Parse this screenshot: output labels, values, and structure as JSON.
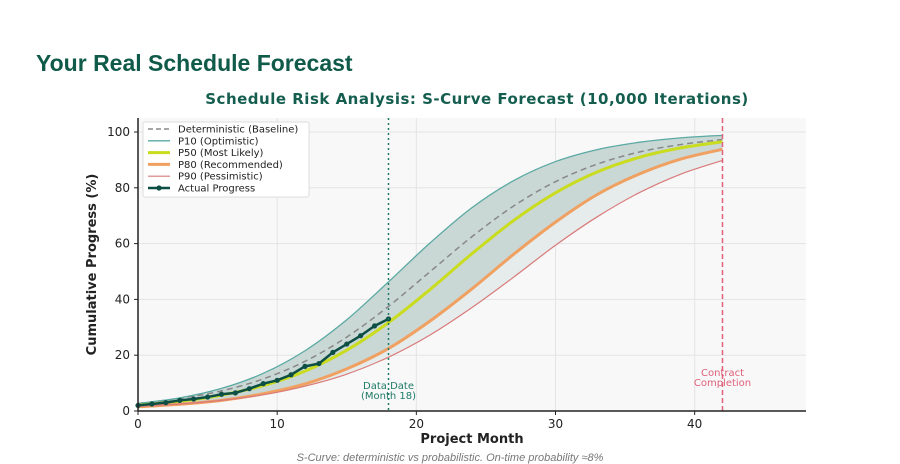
{
  "page": {
    "title": "Your Real Schedule Forecast",
    "caption": "S-Curve: deterministic vs probabilistic. On-time probability ≈8%"
  },
  "chart_data": {
    "type": "line",
    "title": "Schedule Risk Analysis: S-Curve Forecast (10,000 Iterations)",
    "xlabel": "Project Month",
    "ylabel": "Cumulative Progress (%)",
    "xlim": [
      0,
      48
    ],
    "ylim": [
      0,
      105
    ],
    "xticks": [
      0,
      10,
      20,
      30,
      40
    ],
    "yticks": [
      0,
      20,
      40,
      60,
      80,
      100
    ],
    "grid": true,
    "legend_placement": "top-left",
    "x": [
      0,
      3,
      6,
      9,
      12,
      15,
      18,
      21,
      24,
      27,
      30,
      33,
      36,
      39,
      42
    ],
    "series": [
      {
        "name": "Deterministic (Baseline)",
        "color": "#888888",
        "style": "dashed",
        "values": [
          2.7,
          4.5,
          7.2,
          11.5,
          17.8,
          26.5,
          37.5,
          50,
          62.5,
          73.5,
          82.2,
          88.5,
          92.8,
          95.5,
          97.3
        ]
      },
      {
        "name": "P10 (Optimistic)",
        "color": "#5aa9a3",
        "style": "solid",
        "values": [
          2.7,
          4.7,
          8.1,
          13.5,
          21.6,
          32.7,
          46.3,
          60.3,
          72.9,
          82.6,
          89.4,
          93.7,
          96.3,
          97.9,
          98.8
        ]
      },
      {
        "name": "P50 (Most Likely)",
        "color": "#c9dc1e",
        "style": "thick",
        "values": [
          2.1,
          3.5,
          5.7,
          9.1,
          14.3,
          21.8,
          31.7,
          43.6,
          56.4,
          68.3,
          78.2,
          85.7,
          90.9,
          94.3,
          96.5
        ]
      },
      {
        "name": "P80 (Recommended)",
        "color": "#f0a060",
        "style": "thick",
        "values": [
          1.5,
          2.4,
          3.8,
          6.2,
          9.7,
          15.1,
          22.4,
          32.3,
          43.8,
          56.2,
          67.7,
          77.6,
          84.9,
          90.3,
          93.8
        ]
      },
      {
        "name": "P90 (Pessimistic)",
        "color": "#d97a7a",
        "style": "solid",
        "values": [
          1.6,
          2.5,
          3.8,
          5.8,
          8.9,
          13.2,
          19.3,
          27.3,
          37.1,
          48.0,
          59.4,
          69.6,
          78.2,
          84.9,
          89.8
        ]
      }
    ],
    "actual": {
      "name": "Actual Progress",
      "color": "#0d4f44",
      "x": [
        0,
        1,
        2,
        3,
        4,
        5,
        6,
        7,
        8,
        9,
        10,
        11,
        12,
        13,
        14,
        15,
        16,
        17,
        18
      ],
      "values": [
        2,
        2.5,
        3,
        3.8,
        4.3,
        5,
        6,
        6.5,
        8,
        9.8,
        11,
        13,
        16,
        17,
        21,
        24,
        27,
        30.5,
        33
      ]
    },
    "band_color": "#c3d3d1",
    "annotations": [
      {
        "label": "Data Date",
        "label2": "(Month 18)",
        "x": 18,
        "color": "#1f7a66",
        "style": "dotted"
      },
      {
        "label": "Contract",
        "label2": "Completion",
        "x": 42,
        "color": "#e0607a",
        "style": "dashed"
      }
    ]
  }
}
